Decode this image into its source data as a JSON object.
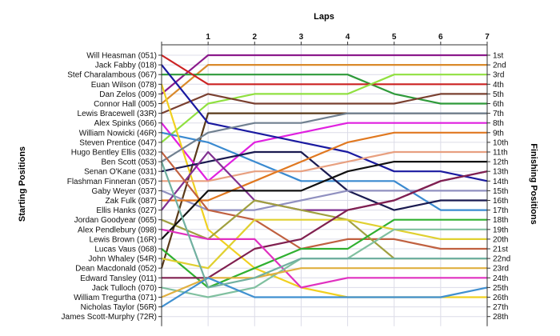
{
  "chart_data": {
    "type": "line",
    "xlabel": "Laps",
    "ylabel_left": "Starting Positions",
    "ylabel_right": "Finishing Positions",
    "laps": [
      "1",
      "2",
      "3",
      "4",
      "5",
      "6",
      "7"
    ],
    "start_labels": [
      "Will Heasman (051)",
      "Jack Fabby (018)",
      "Stef Charalambous (067)",
      "Euan Wilson (078)",
      "Dan Zelos (009)",
      "Connor Hall (005)",
      "Lewis Bracewell (33R)",
      "Alex Spinks (066)",
      "William Nowicki (46R)",
      "Steven Prentice (047)",
      "Hugo Bentley Ellis (032)",
      "Ben Scott (053)",
      "Senan O'Kane (031)",
      "Flashman Finneran (057)",
      "Gaby Weyer (037)",
      "Zak Fulk (087)",
      "Ellis Hanks (027)",
      "Jordan Goodyear (065)",
      "Alex Pendlebury (098)",
      "Lewis Brown (16R)",
      "Lucas Vaus (068)",
      "John Whaley (54R)",
      "Dean Macdonald (052)",
      "Edward Tansley (011)",
      "Jack Tulloch (070)",
      "William Tregurtha (071)",
      "Nicholas Taylor (56R)",
      "James Scott-Murphy (72R)"
    ],
    "finish_labels": [
      "1st",
      "2nd",
      "3rd",
      "4th",
      "5th",
      "6th",
      "7th",
      "8th",
      "9th",
      "10th",
      "11th",
      "12th",
      "13th",
      "14th",
      "15th",
      "16th",
      "17th",
      "18th",
      "19th",
      "20th",
      "21st",
      "22nd",
      "23rd",
      "24th",
      "25th",
      "26th",
      "27th",
      "28th"
    ],
    "series": [
      {
        "color": "#8b1a8b",
        "positions": [
          5,
          1,
          1,
          1,
          1,
          1,
          1,
          1
        ]
      },
      {
        "color": "#d98a2c",
        "positions": [
          6,
          2,
          2,
          2,
          2,
          2,
          2,
          2
        ]
      },
      {
        "color": "#2e9a3a",
        "positions": [
          3,
          3,
          3,
          3,
          3,
          5,
          6,
          6
        ]
      },
      {
        "color": "#cc2222",
        "positions": [
          1,
          4,
          4,
          4,
          4,
          4,
          4,
          4
        ]
      },
      {
        "color": "#90e040",
        "positions": [
          10,
          6,
          5,
          5,
          5,
          3,
          3,
          3
        ]
      },
      {
        "color": "#7a4030",
        "positions": [
          7,
          5,
          6,
          6,
          6,
          6,
          5,
          5
        ]
      },
      {
        "color": "#5a3a1a",
        "positions": [
          23,
          7,
          7,
          7,
          7,
          7,
          7,
          7
        ]
      },
      {
        "color": "#e020e0",
        "positions": [
          8,
          14,
          10,
          9,
          8,
          8,
          8,
          8
        ]
      },
      {
        "color": "#1a1aa0",
        "positions": [
          2,
          8,
          9,
          10,
          11,
          13,
          13,
          14
        ]
      },
      {
        "color": "#3a8ad0",
        "positions": [
          9,
          10,
          12,
          14,
          14,
          14,
          17,
          17
        ]
      },
      {
        "color": "#f0d020",
        "positions": [
          4,
          19,
          23,
          25,
          26,
          26,
          26,
          26
        ]
      },
      {
        "color": "#708090",
        "positions": [
          12,
          9,
          8,
          8,
          7,
          7,
          7,
          7
        ]
      },
      {
        "color": "#1a1a50",
        "positions": [
          13,
          12,
          11,
          11,
          15,
          17,
          16,
          16
        ]
      },
      {
        "color": "#e8a080",
        "positions": [
          14,
          14,
          13,
          13,
          12,
          11,
          11,
          11
        ]
      },
      {
        "color": "#9090c0",
        "positions": [
          15,
          17,
          17,
          16,
          15,
          15,
          15,
          15
        ]
      },
      {
        "color": "#e07820",
        "positions": [
          16,
          16,
          14,
          12,
          10,
          9,
          9,
          9
        ]
      },
      {
        "color": "#803090",
        "positions": [
          17,
          11,
          16,
          17,
          17,
          16,
          14,
          13
        ]
      },
      {
        "color": "#c06040",
        "positions": [
          11,
          17,
          18,
          21,
          20,
          20,
          21,
          21
        ]
      },
      {
        "color": "#a0a040",
        "positions": [
          18,
          20,
          16,
          17,
          18,
          22,
          22,
          22
        ]
      },
      {
        "color": "#101010",
        "positions": [
          20,
          15,
          15,
          15,
          13,
          12,
          12,
          12
        ]
      },
      {
        "color": "#30b030",
        "positions": [
          21,
          25,
          23,
          21,
          21,
          18,
          18,
          18
        ]
      },
      {
        "color": "#e0d030",
        "positions": [
          22,
          23,
          18,
          18,
          18,
          19,
          20,
          20
        ]
      },
      {
        "color": "#802050",
        "positions": [
          24,
          24,
          21,
          20,
          17,
          16,
          14,
          13
        ]
      },
      {
        "color": "#e030c0",
        "positions": [
          19,
          20,
          20,
          25,
          24,
          24,
          24,
          24
        ]
      },
      {
        "color": "#80c0a0",
        "positions": [
          25,
          26,
          25,
          22,
          22,
          19,
          19,
          19
        ]
      },
      {
        "color": "#e0b040",
        "positions": [
          26,
          24,
          24,
          23,
          23,
          23,
          23,
          23
        ]
      },
      {
        "color": "#4090d0",
        "positions": [
          27,
          24,
          26,
          26,
          26,
          26,
          26,
          25
        ]
      },
      {
        "color": "#70b0a0",
        "positions": [
          12,
          25,
          24,
          22,
          22,
          22,
          22,
          22
        ]
      }
    ]
  }
}
